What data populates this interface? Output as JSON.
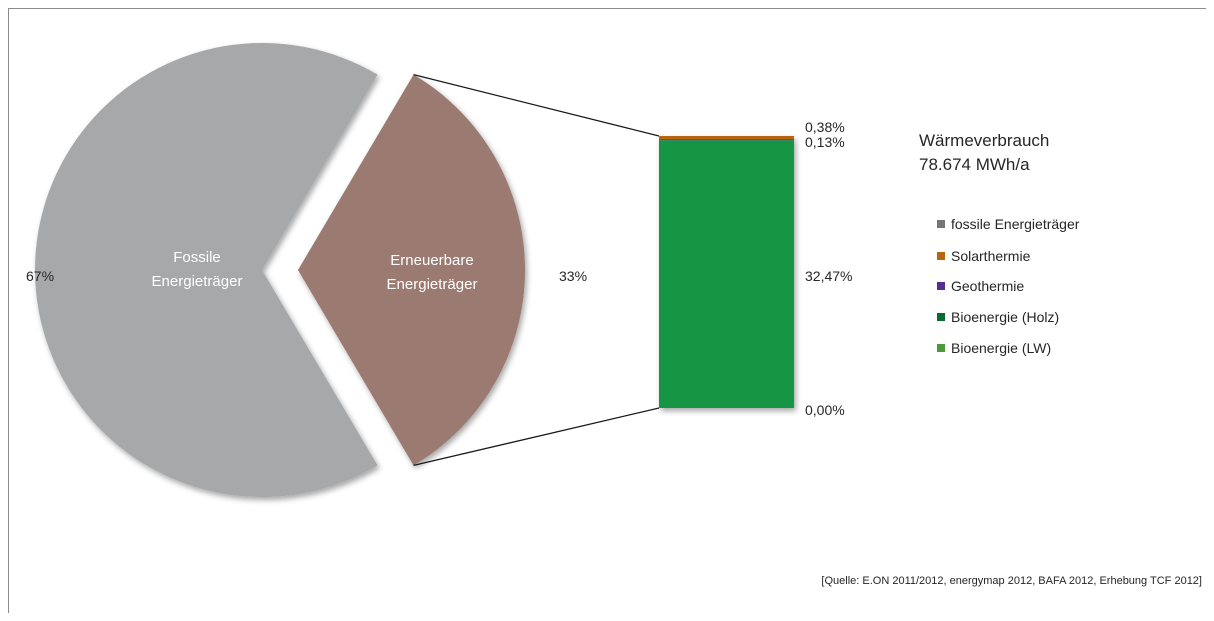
{
  "chart_data": {
    "type": "bar-of-pie",
    "pie": {
      "slices": [
        {
          "name": "Fossile Energieträger",
          "line1": "Fossile",
          "line2": "Energieträger",
          "value": 67,
          "label": "67%",
          "color": "#a6a8aa"
        },
        {
          "name": "Erneuerbare Energieträger",
          "line1": "Erneuerbare",
          "line2": "Energieträger",
          "value": 33,
          "label": "33%",
          "color": "#9b7a71"
        }
      ]
    },
    "bar": {
      "segments": [
        {
          "series": "fossile Energieträger",
          "value": 0.0,
          "label": "0,00%"
        },
        {
          "series": "Bioenergie (Holz)",
          "value": 32.47,
          "label": "32,47%"
        },
        {
          "series": "Geothermie",
          "value": 0.13,
          "label": "0,13%"
        },
        {
          "series": "Solarthermie",
          "value": 0.38,
          "label": "0,38%"
        }
      ]
    },
    "title_line1": "Wärmeverbrauch",
    "title_line2": "78.674 MWh/a",
    "legend": [
      {
        "name": "fossile Energieträger",
        "color": "#767676"
      },
      {
        "name": "Solarthermie",
        "color": "#b8650f"
      },
      {
        "name": "Geothermie",
        "color": "#5b2c8e"
      },
      {
        "name": "Bioenergie (Holz)",
        "color": "#0a6a2e"
      },
      {
        "name": "Bioenergie (LW)",
        "color": "#4c9a3a"
      }
    ],
    "source": "[Quelle: E.ON 2011/2012, energymap 2012,  BAFA 2012, Erhebung TCF 2012]"
  },
  "colors": {
    "bar_holz": "#129545",
    "bar_geo": "#5b2c8e",
    "bar_solar": "#b8650f",
    "connector": "#1a1a1a"
  }
}
